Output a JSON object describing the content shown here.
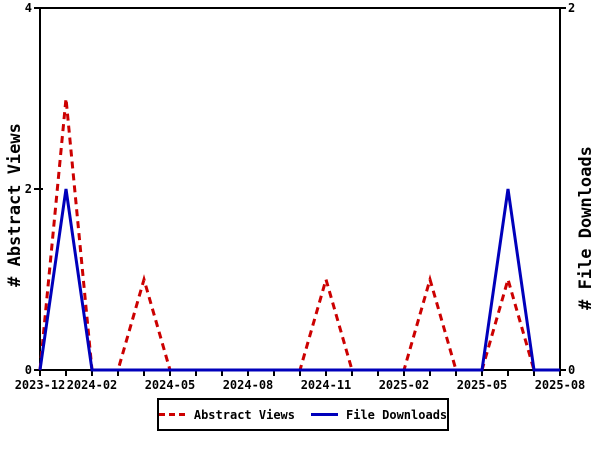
{
  "chart_data": {
    "type": "line",
    "title": "",
    "x": [
      "2023-12",
      "2024-01",
      "2024-02",
      "2024-03",
      "2024-04",
      "2024-05",
      "2024-06",
      "2024-07",
      "2024-08",
      "2024-09",
      "2024-10",
      "2024-11",
      "2024-12",
      "2025-01",
      "2025-02",
      "2025-03",
      "2025-04",
      "2025-05",
      "2025-06",
      "2025-07",
      "2025-08"
    ],
    "x_tick_labels": [
      "2023-12",
      "2024-02",
      "2024-05",
      "2024-08",
      "2024-11",
      "2025-02",
      "2025-05",
      "2025-08"
    ],
    "series": [
      {
        "name": "Abstract Views",
        "axis": "left",
        "color": "#cc0000",
        "line_style": "dashed",
        "values": [
          0,
          3,
          0,
          0,
          1,
          0,
          0,
          0,
          0,
          0,
          0,
          1,
          0,
          0,
          0,
          1,
          0,
          0,
          1,
          0,
          0
        ]
      },
      {
        "name": "File Downloads",
        "axis": "right",
        "color": "#0000bb",
        "line_style": "solid",
        "values": [
          0,
          1,
          0,
          0,
          0,
          0,
          0,
          0,
          0,
          0,
          0,
          0,
          0,
          0,
          0,
          0,
          0,
          0,
          1,
          0,
          0
        ]
      }
    ],
    "left_axis": {
      "label": "# Abstract Views",
      "min": 0,
      "max": 4,
      "ticks": [
        0,
        2,
        4
      ]
    },
    "right_axis": {
      "label": "# File Downloads",
      "min": 0,
      "max": 2,
      "ticks": [
        0,
        2
      ]
    },
    "axis_color": "#000000",
    "grid": false,
    "legend_position": "bottom"
  }
}
